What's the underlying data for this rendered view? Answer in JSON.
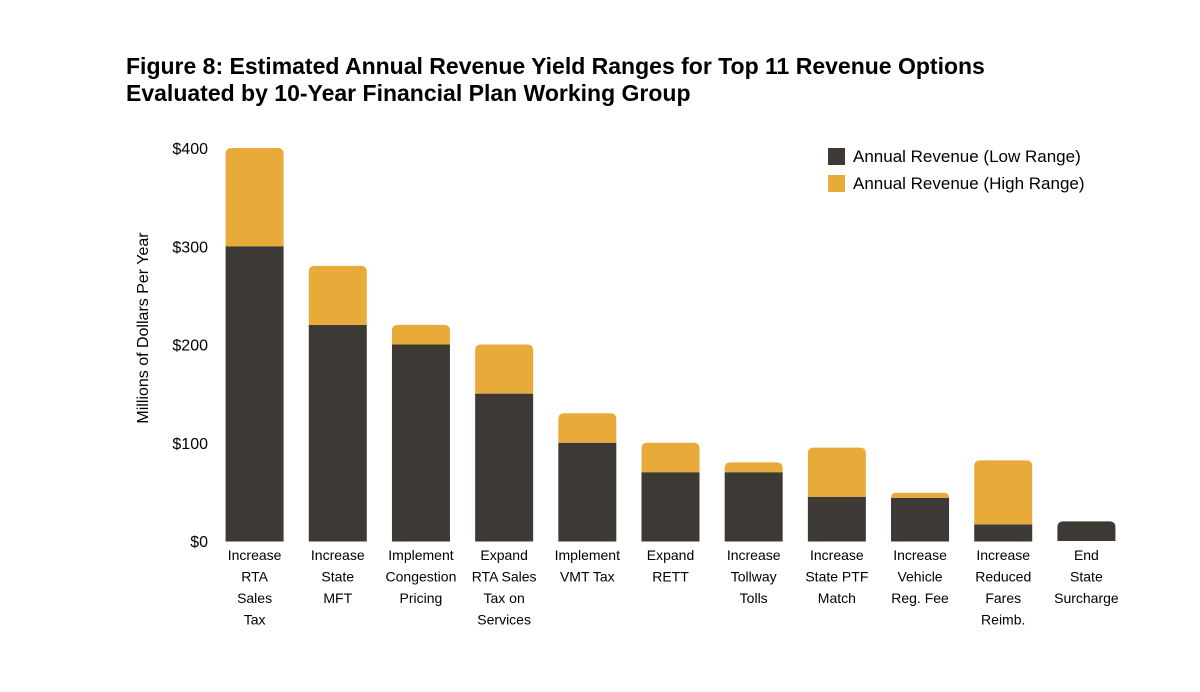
{
  "title_lines": [
    "Figure 8: Estimated Annual Revenue Yield Ranges for Top 11 Revenue Options",
    "Evaluated by 10-Year Financial Plan Working Group"
  ],
  "colors": {
    "low": "#3d3935",
    "high": "#e8ab3a"
  },
  "chart_data": {
    "type": "bar",
    "stacked": true,
    "title": "Figure 8: Estimated Annual Revenue Yield Ranges for Top 11 Revenue Options Evaluated by 10-Year Financial Plan Working Group",
    "xlabel": "",
    "ylabel": "Millions of Dollars Per Year",
    "ylim": [
      0,
      400
    ],
    "yticks": [
      0,
      100,
      200,
      300,
      400
    ],
    "ytick_labels": [
      "$0",
      "$100",
      "$200",
      "$300",
      "$400"
    ],
    "legend_position": "top-right",
    "grid": false,
    "categories": [
      [
        "Increase",
        "RTA",
        "Sales",
        "Tax"
      ],
      [
        "Increase",
        "State",
        "MFT"
      ],
      [
        "Implement",
        "Congestion",
        "Pricing"
      ],
      [
        "Expand",
        "RTA Sales",
        "Tax on",
        "Services"
      ],
      [
        "Implement",
        "VMT Tax"
      ],
      [
        "Expand",
        "RETT"
      ],
      [
        "Increase",
        "Tollway",
        "Tolls"
      ],
      [
        "Increase",
        "State PTF",
        "Match"
      ],
      [
        "Increase",
        "Vehicle",
        "Reg. Fee"
      ],
      [
        "Increase",
        "Reduced",
        "Fares",
        "Reimb."
      ],
      [
        "End",
        "State",
        "Surcharge"
      ]
    ],
    "series": [
      {
        "name": "Annual Revenue (Low Range)",
        "values": [
          300,
          220,
          200,
          150,
          100,
          70,
          70,
          45,
          44,
          17,
          20
        ]
      },
      {
        "name": "Annual Revenue (High Range)",
        "values": [
          100,
          60,
          20,
          50,
          30,
          30,
          10,
          50,
          5,
          65,
          0
        ]
      }
    ]
  }
}
